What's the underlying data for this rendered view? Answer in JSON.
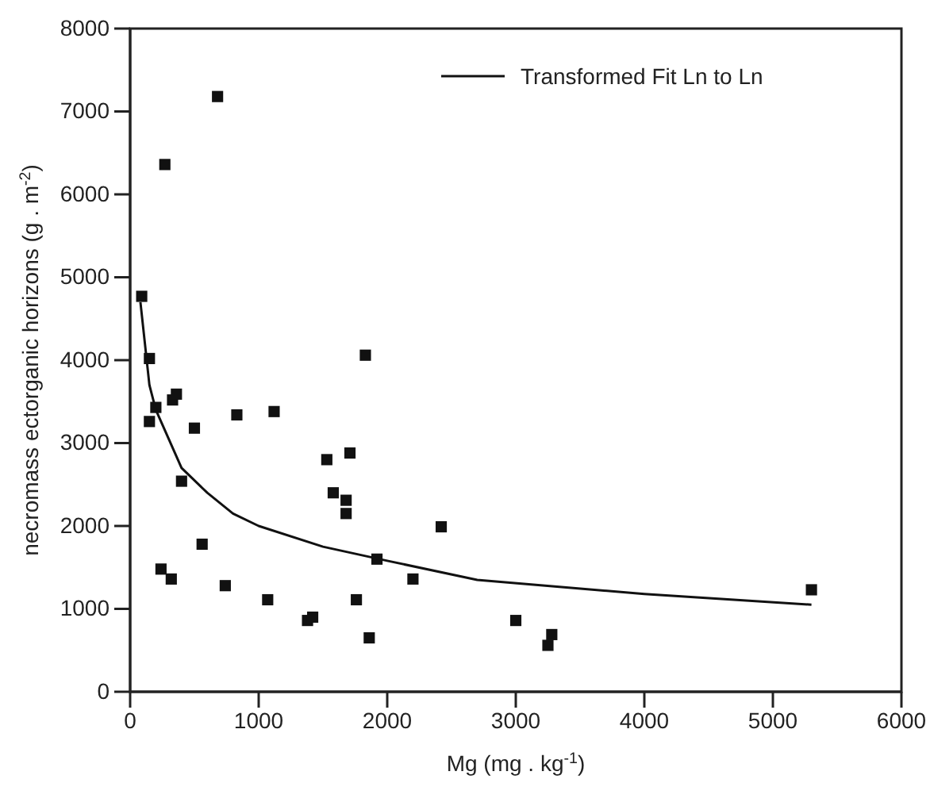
{
  "chart_data": {
    "type": "scatter",
    "xlabel": "Mg (mg . kg$^{-1}$)",
    "ylabel": "necromass ectorganic horizons (g . m$^{-2}$)",
    "xlim": [
      0,
      6000
    ],
    "xticks": [
      0,
      1000,
      2000,
      3000,
      4000,
      5000,
      6000
    ],
    "ylim": [
      0,
      8000
    ],
    "yticks": [
      0,
      1000,
      2000,
      3000,
      4000,
      5000,
      6000,
      7000,
      8000
    ],
    "grid": false,
    "legend": "top right",
    "marker": "square",
    "series": [
      {
        "color": "#111111",
        "x": [
          90,
          150,
          200,
          150,
          330,
          360,
          500,
          400,
          240,
          320,
          680,
          270,
          560,
          740,
          830,
          1120,
          1070,
          1380,
          1420,
          1830,
          1530,
          1710,
          1580,
          1680,
          1680,
          1760,
          1860,
          1920,
          2200,
          2420,
          3000,
          3250,
          3280,
          5300
        ],
        "values": [
          4770,
          4020,
          3430,
          3260,
          3520,
          3590,
          3180,
          2540,
          1480,
          1360,
          7180,
          6360,
          1780,
          1280,
          3340,
          3380,
          1110,
          860,
          900,
          4060,
          2800,
          2880,
          2400,
          2310,
          2150,
          1110,
          650,
          1600,
          1360,
          1990,
          860,
          560,
          690,
          1230
        ]
      },
      {
        "type": "line",
        "name": "Transformed Fit Ln to Ln",
        "color": "#111111",
        "marker": "none",
        "line_style": "solid",
        "x": [
          80,
          150,
          200,
          400,
          600,
          800,
          1000,
          1500,
          2000,
          2700,
          4000,
          5300
        ],
        "values": [
          4700,
          3700,
          3400,
          2700,
          2400,
          2150,
          2000,
          1750,
          1580,
          1350,
          1180,
          1050
        ]
      }
    ]
  }
}
